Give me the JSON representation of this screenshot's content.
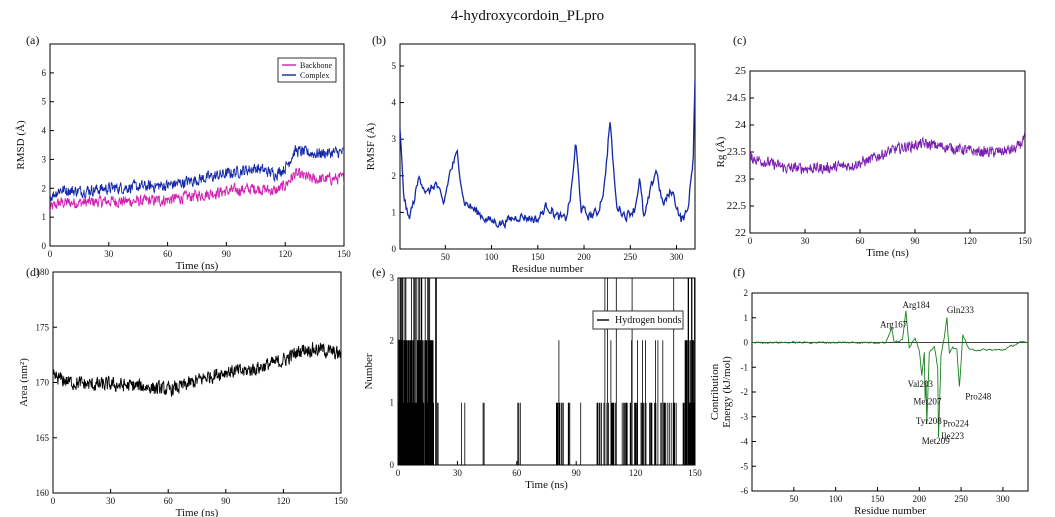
{
  "figure": {
    "title": "4-hydroxycordoin_PLpro"
  },
  "chart_data": [
    {
      "panel": "(a)",
      "type": "line",
      "xlabel": "Time (ns)",
      "ylabel": "RMSD (Å)",
      "xlim": [
        0,
        150
      ],
      "ylim": [
        0,
        7
      ],
      "xticks": [
        0,
        30,
        60,
        90,
        120,
        150
      ],
      "yticks": [
        0,
        1,
        2,
        3,
        4,
        5,
        6
      ],
      "legend": "top-right",
      "series": [
        {
          "name": "Backbone",
          "color": "#d020b0",
          "noise": 0.28,
          "x": [
            0,
            5,
            15,
            30,
            45,
            60,
            75,
            90,
            105,
            115,
            120,
            125,
            135,
            150
          ],
          "y": [
            1.3,
            1.5,
            1.5,
            1.55,
            1.55,
            1.6,
            1.75,
            1.9,
            2.0,
            1.9,
            2.1,
            2.5,
            2.3,
            2.35
          ]
        },
        {
          "name": "Complex",
          "color": "#1428a8",
          "noise": 0.28,
          "x": [
            0,
            5,
            15,
            30,
            45,
            60,
            75,
            90,
            105,
            115,
            120,
            125,
            135,
            150
          ],
          "y": [
            1.7,
            1.95,
            1.9,
            2.0,
            2.05,
            2.1,
            2.3,
            2.5,
            2.7,
            2.5,
            2.7,
            3.3,
            3.2,
            3.25
          ]
        }
      ]
    },
    {
      "panel": "(b)",
      "type": "line",
      "xlabel": "Residue number",
      "ylabel": "RMSF (Å)",
      "xlim": [
        1,
        320
      ],
      "ylim": [
        0,
        5.6
      ],
      "xticks": [
        50,
        100,
        150,
        200,
        250,
        300
      ],
      "yticks": [
        0,
        1,
        2,
        3,
        4,
        5
      ],
      "series": [
        {
          "name": "",
          "color": "#1428a8",
          "noise": 0.18,
          "x": [
            1,
            5,
            10,
            15,
            22,
            30,
            40,
            48,
            55,
            63,
            70,
            80,
            95,
            110,
            130,
            150,
            160,
            170,
            180,
            186,
            191,
            197,
            205,
            215,
            222,
            228,
            235,
            245,
            255,
            260,
            265,
            272,
            278,
            285,
            295,
            305,
            312,
            318,
            320
          ],
          "y": [
            3.2,
            1.5,
            0.8,
            1.2,
            2.0,
            1.5,
            1.8,
            1.2,
            2.1,
            2.6,
            1.3,
            1.1,
            0.8,
            0.7,
            0.9,
            0.8,
            1.2,
            0.9,
            0.8,
            1.5,
            2.9,
            1.1,
            0.9,
            1.0,
            1.7,
            3.5,
            1.2,
            0.9,
            1.1,
            1.9,
            0.8,
            1.6,
            2.2,
            1.2,
            1.6,
            0.8,
            1.0,
            2.5,
            4.6
          ]
        }
      ]
    },
    {
      "panel": "(c)",
      "type": "line",
      "xlabel": "Time (ns)",
      "ylabel": "Rg (Å)",
      "xlim": [
        0,
        150
      ],
      "ylim": [
        22,
        25
      ],
      "xticks": [
        0,
        30,
        60,
        90,
        120,
        150
      ],
      "yticks": [
        22,
        22.5,
        23,
        23.5,
        24,
        24.5,
        25
      ],
      "series": [
        {
          "name": "",
          "color": "#7a1fb0",
          "noise": 0.14,
          "x": [
            0,
            10,
            20,
            30,
            40,
            55,
            65,
            75,
            85,
            95,
            105,
            115,
            125,
            135,
            145,
            150
          ],
          "y": [
            23.4,
            23.3,
            23.2,
            23.2,
            23.2,
            23.25,
            23.35,
            23.5,
            23.6,
            23.65,
            23.6,
            23.55,
            23.5,
            23.5,
            23.55,
            23.75
          ]
        }
      ]
    },
    {
      "panel": "(d)",
      "type": "line",
      "xlabel": "Time (ns)",
      "ylabel": "Area (nm²)",
      "xlim": [
        0,
        150
      ],
      "ylim": [
        160,
        180
      ],
      "xticks": [
        0,
        30,
        60,
        90,
        120,
        150
      ],
      "yticks": [
        160,
        165,
        170,
        175,
        180
      ],
      "series": [
        {
          "name": "",
          "color": "#000000",
          "noise": 0.9,
          "x": [
            0,
            10,
            20,
            30,
            40,
            50,
            60,
            70,
            80,
            90,
            100,
            110,
            120,
            130,
            140,
            150
          ],
          "y": [
            170.5,
            170.0,
            169.8,
            169.8,
            169.7,
            169.6,
            169.3,
            169.8,
            170.5,
            171.0,
            171.0,
            171.5,
            172.0,
            173.0,
            173.0,
            172.5
          ]
        }
      ]
    },
    {
      "panel": "(e)",
      "type": "line",
      "xlabel": "Time (ns)",
      "ylabel": "Number",
      "xlim": [
        0,
        150
      ],
      "ylim": [
        0,
        3
      ],
      "xticks": [
        0,
        30,
        60,
        90,
        120,
        150
      ],
      "yticks": [
        0,
        1,
        2,
        3
      ],
      "legend": "top-right",
      "series": [
        {
          "name": "Hydrogen bonds",
          "color": "#000000",
          "regions": [
            [
              0,
              18,
              2.2
            ],
            [
              18,
              21,
              1.2
            ],
            [
              32,
              34,
              0.6
            ],
            [
              42,
              44,
              0.3
            ],
            [
              58,
              62,
              0.6
            ],
            [
              80,
              84,
              1.0
            ],
            [
              85,
              87,
              0.8
            ],
            [
              92,
              94,
              0.8
            ],
            [
              100,
              124,
              1.0
            ],
            [
              124,
              130,
              0.8
            ],
            [
              130,
              145,
              1.0
            ],
            [
              145,
              150,
              2.2
            ]
          ]
        }
      ]
    },
    {
      "panel": "(f)",
      "type": "line",
      "xlabel": "Residue number",
      "ylabel": "Contribution\nEnergy (kJ/mol)",
      "xlim": [
        0,
        330
      ],
      "ylim": [
        -6,
        2
      ],
      "xticks": [
        50,
        100,
        150,
        200,
        250,
        300
      ],
      "yticks": [
        -6,
        -5,
        -4,
        -3,
        -2,
        -1,
        0,
        1,
        2
      ],
      "annotations": [
        {
          "text": "Arg167",
          "x": 153,
          "y": 0.6
        },
        {
          "text": "Arg184",
          "x": 180,
          "y": 1.4
        },
        {
          "text": "Gln233",
          "x": 233,
          "y": 1.2
        },
        {
          "text": "Val203",
          "x": 186,
          "y": -1.8
        },
        {
          "text": "Met207",
          "x": 193,
          "y": -2.5
        },
        {
          "text": "Pro248",
          "x": 255,
          "y": -2.3
        },
        {
          "text": "Tyr208",
          "x": 196,
          "y": -3.3
        },
        {
          "text": "Pro224",
          "x": 228,
          "y": -3.4
        },
        {
          "text": "Ile223",
          "x": 226,
          "y": -3.9
        },
        {
          "text": "Met209",
          "x": 203,
          "y": -4.1
        }
      ],
      "series": [
        {
          "name": "",
          "color": "#1a8020",
          "noise": 0.05,
          "x": [
            0,
            160,
            167,
            170,
            180,
            184,
            188,
            195,
            200,
            203,
            206,
            207,
            208,
            209,
            212,
            218,
            222,
            223,
            224,
            226,
            230,
            233,
            236,
            240,
            245,
            248,
            252,
            260,
            300,
            320
          ],
          "y": [
            0,
            0,
            0.6,
            0,
            0.1,
            1.3,
            -0.2,
            0.2,
            -0.3,
            -1.3,
            -0.4,
            -2.3,
            -1.5,
            -3.3,
            -0.4,
            -0.2,
            -1.0,
            -3.8,
            -2.8,
            -0.5,
            0.2,
            1.0,
            -0.4,
            -0.2,
            -0.3,
            -1.8,
            0.3,
            -0.3,
            -0.3,
            0
          ]
        }
      ]
    }
  ]
}
